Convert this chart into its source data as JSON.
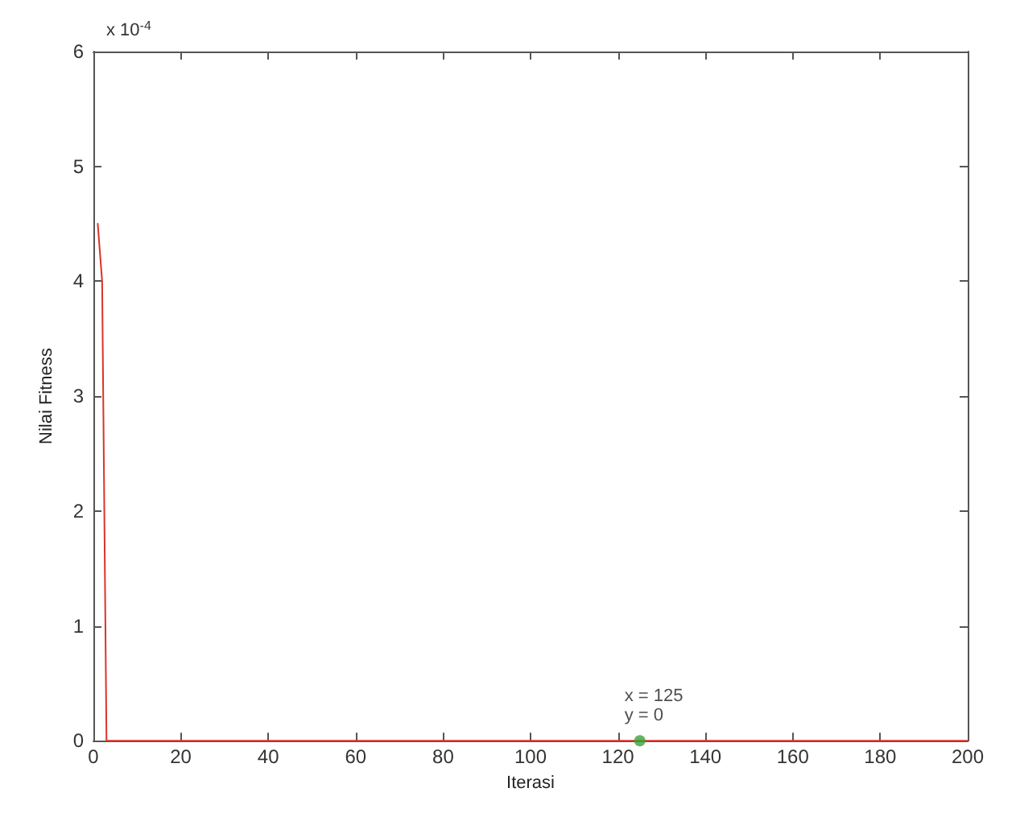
{
  "chart_data": {
    "type": "line",
    "xlabel": "Iterasi",
    "ylabel": "Nilai Fitness",
    "series": [
      {
        "color": "#d9342b",
        "x": [
          1,
          2,
          3,
          200
        ],
        "values": [
          4.5,
          4.0,
          0,
          0
        ]
      }
    ],
    "xlim": [
      0,
      200
    ],
    "xticks": [
      0,
      20,
      40,
      60,
      80,
      100,
      120,
      140,
      160,
      180,
      200
    ],
    "ylim": [
      0,
      6
    ],
    "yticks": [
      0,
      1,
      2,
      3,
      4,
      5,
      6
    ],
    "annotations": [
      "x 10$^{-4}$",
      {
        "text": "x = 125\ny = 0",
        "x": 125,
        "y": 0
      }
    ],
    "grid": false,
    "marker": "none",
    "line_style": "solid"
  }
}
